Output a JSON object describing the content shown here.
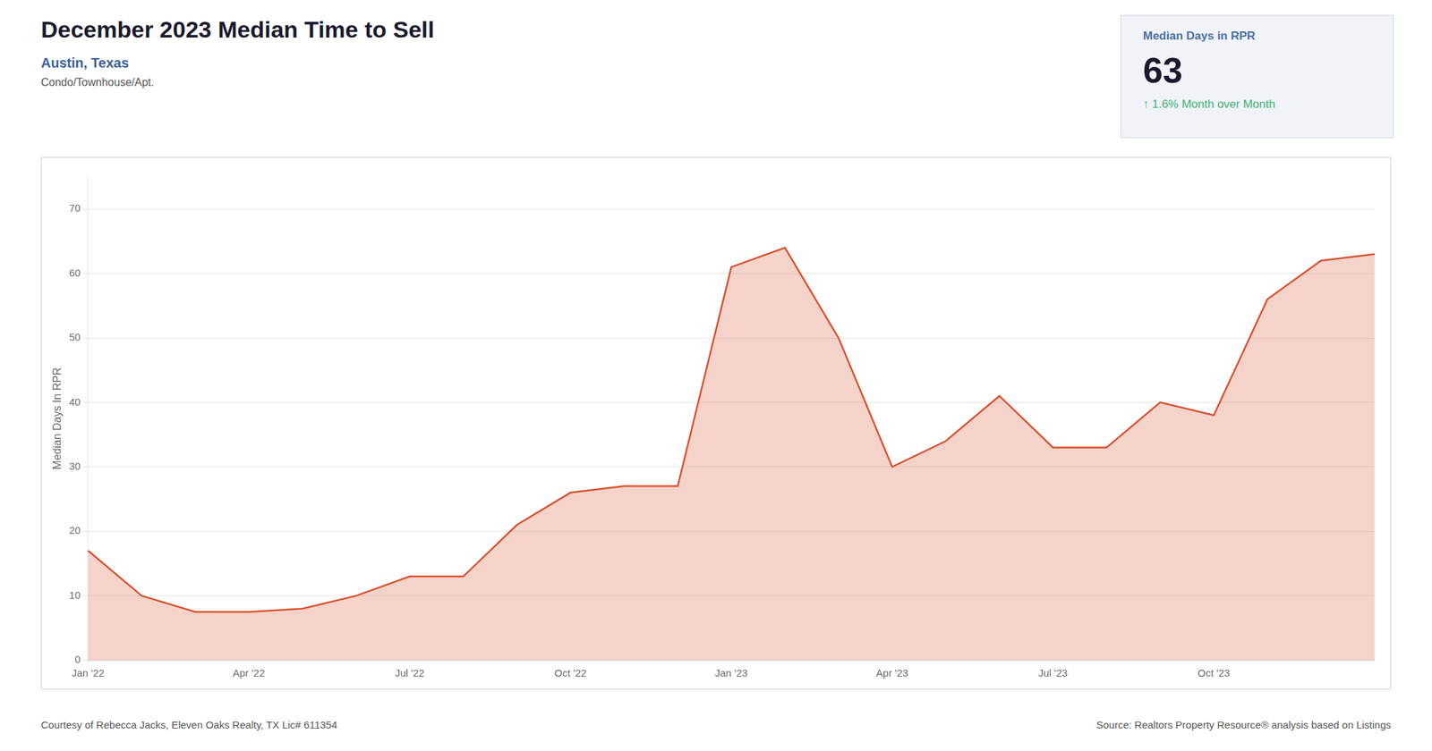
{
  "chart_data": {
    "type": "area",
    "title": "December 2023 Median Time to Sell",
    "subtitle": "Austin, Texas",
    "y_label": "Median Days In RPR",
    "categories": [
      "Jan '22",
      null,
      null,
      "Apr '22",
      null,
      null,
      "Jul '22",
      null,
      null,
      "Oct '22",
      null,
      null,
      "Jan '23",
      null,
      null,
      "Apr '23",
      null,
      null,
      "Jul '23",
      null,
      null,
      "Oct '23",
      null,
      null,
      null
    ],
    "values": [
      17,
      10,
      7.5,
      7.5,
      8,
      10,
      13,
      13,
      21,
      26,
      27,
      27,
      61,
      64,
      50,
      30,
      34,
      41,
      33,
      33,
      40,
      38,
      56,
      62,
      63
    ],
    "color": "#d94f2b",
    "ylim": [
      0,
      75
    ],
    "yticks": [
      0,
      10,
      20,
      30,
      40,
      50,
      60,
      70
    ],
    "grid": "y",
    "annotations": [
      {
        "text": "Condo/Townhouse/Apt."
      },
      {
        "text": "Median Days in RPR"
      },
      {
        "text": "63"
      },
      {
        "text": "↑ 1.6% Month over Month",
        "color": "#3cb371"
      },
      {
        "text": "Courtesy of Rebecca Jacks, Eleven Oaks Realty, TX Lic# 611354"
      },
      {
        "text": "Source: Realtors Property Resource® analysis based on Listings"
      }
    ]
  }
}
